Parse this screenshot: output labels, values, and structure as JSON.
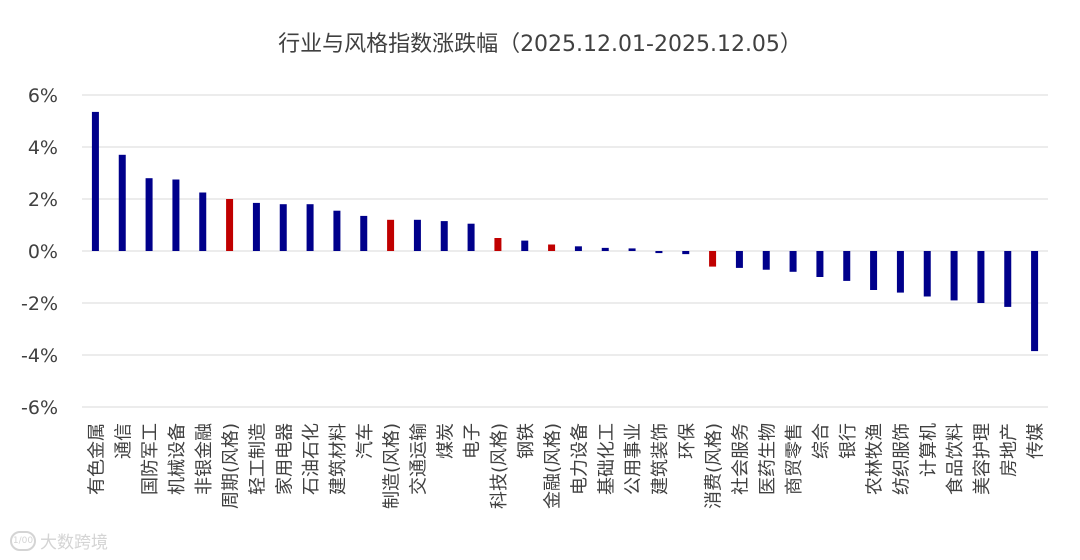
{
  "chart_data": {
    "type": "bar",
    "title": "行业与风格指数涨跌幅（2025.12.01-2025.12.05）",
    "xlabel": "",
    "ylabel": "",
    "ylim": [
      -6,
      6
    ],
    "yticks": [
      6,
      4,
      2,
      0,
      -2,
      -4,
      -6
    ],
    "ytick_labels": [
      "6%",
      "4%",
      "2%",
      "0%",
      "-2%",
      "-4%",
      "-6%"
    ],
    "grid": true,
    "colors": {
      "industry": "#00008b",
      "style": "#c00000",
      "grid": "#d9d9d9",
      "text": "#404040"
    },
    "categories": [
      "有色金属",
      "通信",
      "国防军工",
      "机械设备",
      "非银金融",
      "周期(风格)",
      "轻工制造",
      "家用电器",
      "石油石化",
      "建筑材料",
      "汽车",
      "制造(风格)",
      "交通运输",
      "煤炭",
      "电子",
      "科技(风格)",
      "钢铁",
      "金融(风格)",
      "电力设备",
      "基础化工",
      "公用事业",
      "建筑装饰",
      "环保",
      "消费(风格)",
      "社会服务",
      "医药生物",
      "商贸零售",
      "综合",
      "银行",
      "农林牧渔",
      "纺织服饰",
      "计算机",
      "食品饮料",
      "美容护理",
      "房地产",
      "传媒"
    ],
    "values": [
      5.35,
      3.7,
      2.8,
      2.75,
      2.25,
      2.0,
      1.85,
      1.8,
      1.8,
      1.55,
      1.35,
      1.2,
      1.2,
      1.15,
      1.05,
      0.5,
      0.4,
      0.25,
      0.18,
      0.12,
      0.1,
      -0.08,
      -0.12,
      -0.6,
      -0.65,
      -0.72,
      -0.8,
      -1.0,
      -1.15,
      -1.5,
      -1.6,
      -1.75,
      -1.9,
      -2.0,
      -2.15,
      -3.85
    ],
    "highlight": [
      false,
      false,
      false,
      false,
      false,
      true,
      false,
      false,
      false,
      false,
      false,
      true,
      false,
      false,
      false,
      true,
      false,
      true,
      false,
      false,
      false,
      false,
      false,
      true,
      false,
      false,
      false,
      false,
      false,
      false,
      false,
      false,
      false,
      false,
      false,
      false
    ]
  },
  "watermark": {
    "text": "大数跨境",
    "logo_text": "1/00"
  }
}
